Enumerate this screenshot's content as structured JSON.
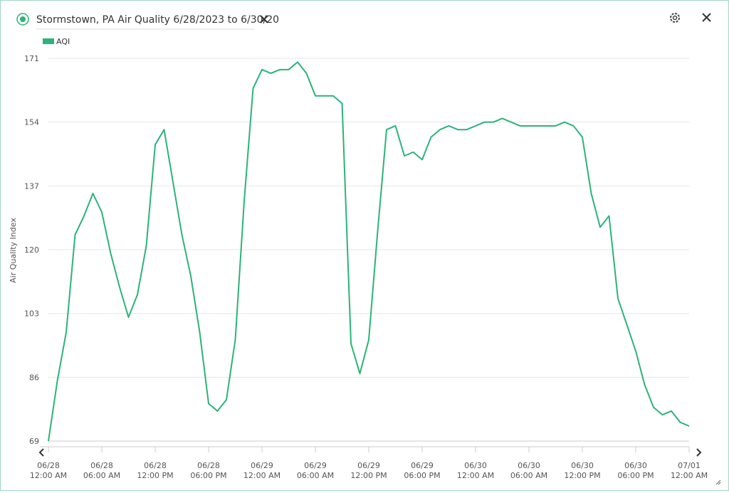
{
  "chart_data": {
    "type": "line",
    "title": "Stormstown, PA Air Quality 6/28/2023 to 6/30/20",
    "y_label": "Air Quality Index",
    "x": [
      0,
      1,
      2,
      3,
      4,
      5,
      6,
      7,
      8,
      9,
      10,
      11,
      12,
      13,
      14,
      15,
      16,
      17,
      18,
      19,
      20,
      21,
      22,
      23,
      24,
      25,
      26,
      27,
      28,
      29,
      30,
      31,
      32,
      33,
      34,
      35,
      36,
      37,
      38,
      39,
      40,
      41,
      42,
      43,
      44,
      45,
      46,
      47,
      48,
      49,
      50,
      51,
      52,
      53,
      54,
      55,
      56,
      57,
      58,
      59,
      60,
      61,
      62,
      63,
      64,
      65,
      66,
      67,
      68,
      69,
      70,
      71,
      72
    ],
    "series": [
      {
        "name": "AQI",
        "color": "#2bb37a",
        "values": [
          69,
          85,
          98,
          124,
          129,
          135,
          130,
          119,
          110,
          102,
          108,
          121,
          148,
          152,
          138,
          124,
          113,
          98,
          79,
          77,
          80,
          96,
          133,
          163,
          168,
          167,
          168,
          168,
          170,
          167,
          161,
          161,
          161,
          159,
          95,
          87,
          96,
          125,
          152,
          153,
          145,
          146,
          144,
          150,
          152,
          153,
          152,
          152,
          153,
          154,
          154,
          155,
          154,
          153,
          153,
          153,
          153,
          153,
          154,
          153,
          150,
          135,
          126,
          129,
          107,
          100,
          93,
          84,
          78,
          76,
          77,
          74,
          73
        ]
      }
    ],
    "xlim": [
      0,
      72
    ],
    "xticks": [
      {
        "value": 0,
        "label": "06/28 12:00 AM"
      },
      {
        "value": 6,
        "label": "06/28 06:00 AM"
      },
      {
        "value": 12,
        "label": "06/28 12:00 PM"
      },
      {
        "value": 18,
        "label": "06/28 06:00 PM"
      },
      {
        "value": 24,
        "label": "06/29 12:00 AM"
      },
      {
        "value": 30,
        "label": "06/29 06:00 AM"
      },
      {
        "value": 36,
        "label": "06/29 12:00 PM"
      },
      {
        "value": 42,
        "label": "06/29 06:00 PM"
      },
      {
        "value": 48,
        "label": "06/30 12:00 AM"
      },
      {
        "value": 54,
        "label": "06/30 06:00 AM"
      },
      {
        "value": 60,
        "label": "06/30 12:00 PM"
      },
      {
        "value": 66,
        "label": "06/30 06:00 PM"
      },
      {
        "value": 72,
        "label": "07/01 12:00 AM"
      }
    ],
    "ylim": [
      69,
      171
    ],
    "yticks": [
      69,
      86,
      103,
      120,
      137,
      154,
      171
    ],
    "grid": true
  }
}
